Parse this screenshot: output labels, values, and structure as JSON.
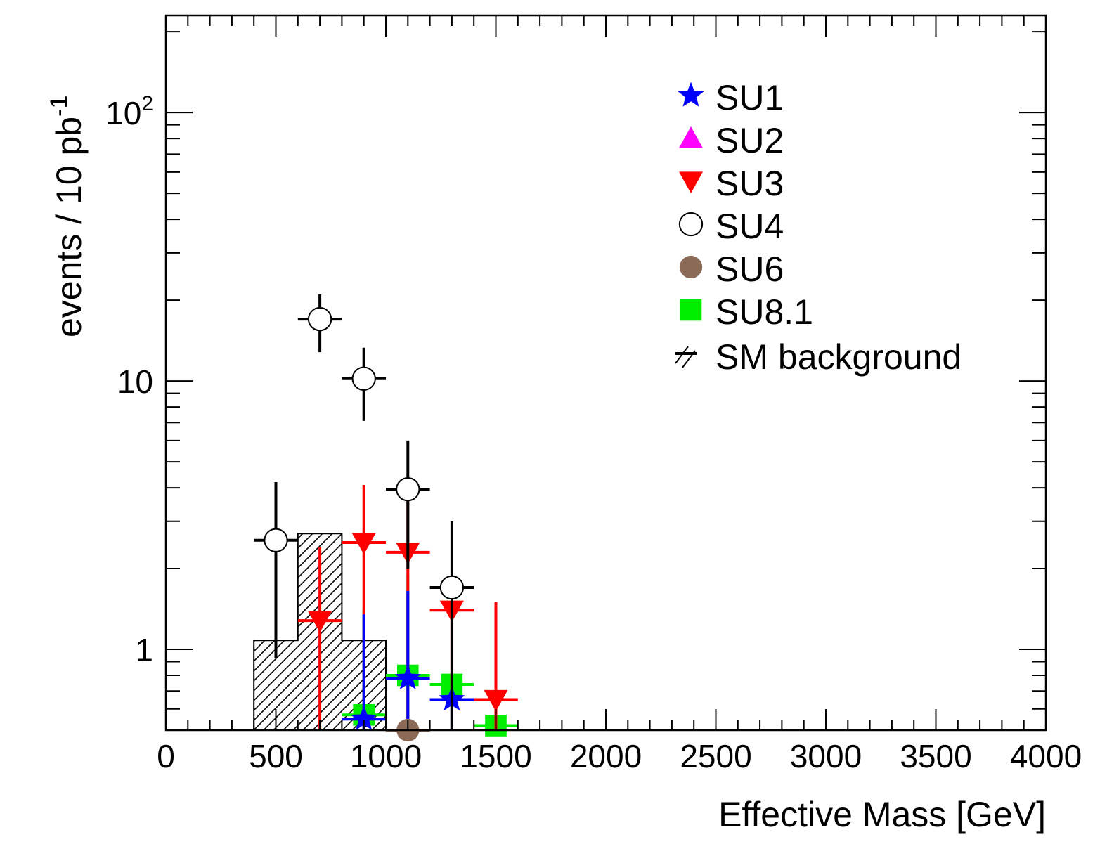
{
  "chart_data": {
    "type": "scatter",
    "xlabel": "Effective Mass [GeV]",
    "ylabel": "events / 10 pb",
    "ylabel_sup": "-1",
    "xlim": [
      0,
      4000
    ],
    "ylim": [
      0.5,
      230
    ],
    "yscale": "log",
    "x_ticks": [
      "0",
      "500",
      "1000",
      "1500",
      "2000",
      "2500",
      "3000",
      "3500",
      "4000"
    ],
    "y_ticks": [
      {
        "value": 1,
        "label": "1",
        "sup": ""
      },
      {
        "value": 10,
        "label": "10",
        "sup": ""
      },
      {
        "value": 100,
        "label": "10",
        "sup": "2"
      }
    ],
    "legend_position": "top-right",
    "background": {
      "name": "SM background",
      "bins": [
        {
          "lo": 400,
          "hi": 600,
          "value": 1.08
        },
        {
          "lo": 600,
          "hi": 800,
          "value": 2.7
        },
        {
          "lo": 800,
          "hi": 1000,
          "value": 1.08
        }
      ]
    },
    "series": [
      {
        "name": "SU1",
        "marker": "star",
        "color": "#0000ff",
        "points": [
          {
            "x": 900,
            "y": 0.55,
            "ylo": 0.5,
            "yhi": 1.35
          },
          {
            "x": 1100,
            "y": 0.78,
            "ylo": 0.5,
            "yhi": 1.65
          },
          {
            "x": 1300,
            "y": 0.65,
            "ylo": 0.5,
            "yhi": 0.65
          }
        ]
      },
      {
        "name": "SU2",
        "marker": "triangle-up",
        "color": "#ff00ff",
        "points": []
      },
      {
        "name": "SU3",
        "marker": "triangle-down",
        "color": "#ff0000",
        "points": [
          {
            "x": 700,
            "y": 1.28,
            "ylo": 0.5,
            "yhi": 2.4
          },
          {
            "x": 900,
            "y": 2.5,
            "ylo": 0.5,
            "yhi": 4.1
          },
          {
            "x": 1100,
            "y": 2.3,
            "ylo": 0.5,
            "yhi": 3.85
          },
          {
            "x": 1300,
            "y": 1.4,
            "ylo": 0.5,
            "yhi": 1.4
          },
          {
            "x": 1500,
            "y": 0.65,
            "ylo": 0.5,
            "yhi": 1.5
          }
        ]
      },
      {
        "name": "SU4",
        "marker": "circle-open",
        "color": "#000000",
        "points": [
          {
            "x": 500,
            "y": 2.55,
            "ylo": 0.93,
            "yhi": 4.2
          },
          {
            "x": 700,
            "y": 17.0,
            "ylo": 12.8,
            "yhi": 21.0
          },
          {
            "x": 900,
            "y": 10.2,
            "ylo": 7.1,
            "yhi": 13.3
          },
          {
            "x": 1100,
            "y": 3.95,
            "ylo": 2.0,
            "yhi": 6.0
          },
          {
            "x": 1300,
            "y": 1.7,
            "ylo": 0.5,
            "yhi": 3.0
          }
        ]
      },
      {
        "name": "SU6",
        "marker": "circle",
        "color": "#8b6b57",
        "points": [
          {
            "x": 1100,
            "y": 0.5,
            "ylo": 0.5,
            "yhi": 0.5
          }
        ]
      },
      {
        "name": "SU8.1",
        "marker": "square",
        "color": "#00ee00",
        "points": [
          {
            "x": 900,
            "y": 0.57,
            "ylo": 0.5,
            "yhi": 1.4
          },
          {
            "x": 1100,
            "y": 0.8,
            "ylo": 0.5,
            "yhi": 1.9
          },
          {
            "x": 1300,
            "y": 0.74,
            "ylo": 0.5,
            "yhi": 0.74
          },
          {
            "x": 1500,
            "y": 0.52,
            "ylo": 0.5,
            "yhi": 1.28
          }
        ]
      }
    ]
  }
}
